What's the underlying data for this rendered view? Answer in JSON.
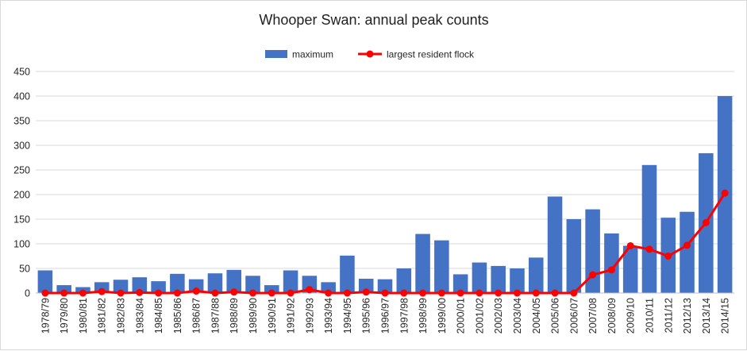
{
  "chart_data": {
    "type": "bar",
    "title": "Whooper Swan: annual peak counts",
    "xlabel": "",
    "ylabel": "",
    "ylim": [
      0,
      450
    ],
    "yticks": [
      0,
      50,
      100,
      150,
      200,
      250,
      300,
      350,
      400,
      450
    ],
    "grid": true,
    "legend_position": "top-center",
    "colors": {
      "bar": "#4472c4",
      "line": "#ff0000"
    },
    "categories": [
      "1978/79",
      "1979/80",
      "1980/81",
      "1981/82",
      "1982/83",
      "1983/84",
      "1984/85",
      "1985/86",
      "1986/87",
      "1987/88",
      "1988/89",
      "1989/90",
      "1990/91",
      "1991/92",
      "1992/93",
      "1993/94",
      "1994/95",
      "1995/96",
      "1996/97",
      "1997/98",
      "1998/99",
      "1999/00",
      "2000/01",
      "2001/02",
      "2002/03",
      "2003/04",
      "2004/05",
      "2005/06",
      "2006/07",
      "2007/08",
      "2008/09",
      "2009/10",
      "2010/11",
      "2011/12",
      "2012/13",
      "2013/14",
      "2014/15"
    ],
    "series": [
      {
        "name": "maximum",
        "kind": "bar",
        "values": [
          46,
          16,
          12,
          22,
          27,
          32,
          24,
          39,
          28,
          40,
          47,
          35,
          16,
          46,
          35,
          22,
          76,
          29,
          28,
          50,
          120,
          107,
          38,
          62,
          55,
          50,
          72,
          196,
          150,
          170,
          121,
          96,
          260,
          153,
          165,
          284,
          400
        ]
      },
      {
        "name": "largest resident flock",
        "kind": "line",
        "values": [
          0,
          0,
          0,
          3,
          0,
          1,
          0,
          0,
          4,
          0,
          2,
          0,
          0,
          0,
          7,
          0,
          0,
          2,
          0,
          0,
          0,
          0,
          0,
          0,
          0,
          0,
          0,
          0,
          0,
          37,
          47,
          96,
          89,
          75,
          97,
          143,
          203
        ]
      }
    ]
  }
}
